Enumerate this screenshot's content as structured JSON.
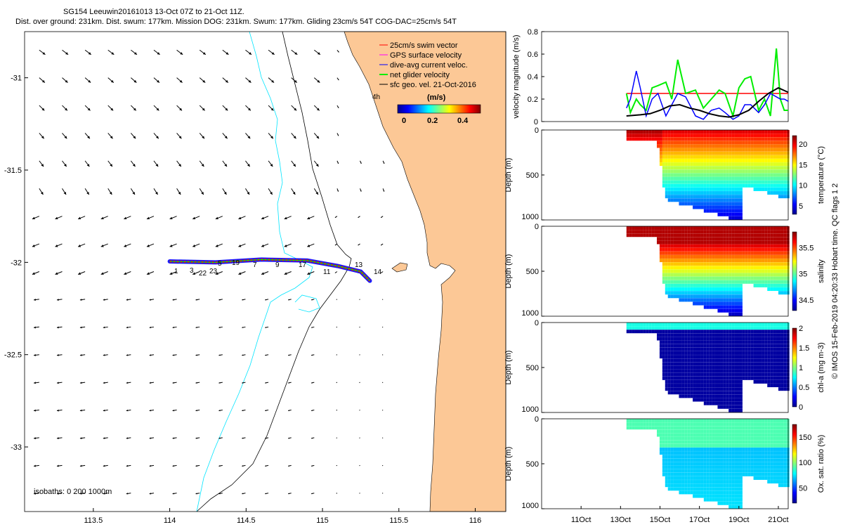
{
  "header": {
    "title_line1": "SG154 Leeuwin20161013 13-Oct 07Z to 21-Oct 11Z.",
    "title_line2": "Dist. over ground: 231km. Dist. swum: 177km. Mission DOG: 231km. Swum: 177km. Gliding 23cm/s 54T COG-DAC=25cm/s 54T"
  },
  "side_note": "© IMOS 15-Feb-2019 04:20:33 Hobart time. QC flags 1  2",
  "colors": {
    "land": "#fcc896",
    "isobath_200": "#00e5ff",
    "isobath_1000": "#000000",
    "swim": "#ff0000",
    "gps": "#ff00ff",
    "dac": "#0000ff",
    "net": "#00ee00",
    "sfc": "#000000"
  },
  "chart_data": [
    {
      "id": "map",
      "type": "map-quiver",
      "xlim": [
        113.05,
        116.2
      ],
      "ylim": [
        -33.35,
        -30.75
      ],
      "xticks": [
        113.5,
        114,
        114.5,
        115,
        115.5,
        116
      ],
      "xtick_labels": [
        "113.5",
        "114",
        "114.5",
        "115",
        "115.5",
        "116"
      ],
      "yticks": [
        -31,
        -31.5,
        -32,
        -32.5,
        -33
      ],
      "ytick_labels": [
        "-31",
        "-31.5",
        "-32",
        "-32.5",
        "-33"
      ],
      "legend": {
        "entries": [
          {
            "label": "25cm/s swim vector",
            "color": "#ff0000"
          },
          {
            "label": "GPS surface velocity",
            "color": "#ff00ff"
          },
          {
            "label": "dive-avg current veloc.",
            "color": "#0000ff"
          },
          {
            "label": "net glider velocity",
            "color": "#00ee00"
          },
          {
            "label": "sfc geo. vel. 21-Oct-2016",
            "color": "#000000"
          }
        ],
        "position": "top-right"
      },
      "colorbar": {
        "title": "(m/s)",
        "ticks": [
          "0",
          "0.2",
          "0.4"
        ],
        "range": [
          0,
          0.5
        ]
      },
      "isobath_label": "isobaths: 0   200   1000m",
      "time_label": "4h",
      "track_day_labels": [
        "1",
        "3",
        "5",
        "7",
        "9",
        "11",
        "13",
        "14",
        "17",
        "19",
        "22",
        "23"
      ],
      "track": {
        "lon": [
          114.0,
          114.3,
          114.6,
          114.9,
          115.1,
          115.25,
          115.31
        ],
        "lat": [
          -31.995,
          -32.0,
          -31.985,
          -31.99,
          -32.02,
          -32.05,
          -32.1
        ]
      },
      "vector_grid": {
        "lon": [
          113.1,
          113.25,
          113.4,
          113.55,
          113.7,
          113.85,
          114.0,
          114.15,
          114.3,
          114.45,
          114.6,
          114.75,
          114.9,
          115.05,
          115.2,
          115.35
        ],
        "lat": [
          -30.85,
          -31.0,
          -31.15,
          -31.3,
          -31.45,
          -31.6,
          -31.75,
          -31.9,
          -32.05,
          -32.2,
          -32.35,
          -32.5,
          -32.65,
          -32.8,
          -32.95,
          -33.1,
          -33.25
        ]
      }
    },
    {
      "id": "velocity",
      "type": "line",
      "ylabel": "velocity magnitude (m/s)",
      "ylim": [
        0,
        0.8
      ],
      "yticks": [
        "0",
        "0.2",
        "0.4",
        "0.6",
        "0.8"
      ],
      "xlim": [
        9,
        21.5
      ],
      "series": [
        {
          "name": "swim",
          "color": "#ff0000",
          "x": [
            13.3,
            21.5
          ],
          "y": [
            0.25,
            0.25
          ]
        },
        {
          "name": "net",
          "color": "#00ee00",
          "x": [
            13.3,
            13.5,
            13.8,
            14.0,
            14.3,
            14.6,
            14.9,
            15.3,
            15.6,
            15.9,
            16.3,
            16.8,
            17.2,
            17.6,
            18.0,
            18.3,
            18.7,
            19.0,
            19.3,
            19.6,
            20.0,
            20.3,
            20.6,
            20.9,
            21.1,
            21.3,
            21.5
          ],
          "y": [
            0.25,
            0.08,
            0.2,
            0.15,
            0.1,
            0.3,
            0.32,
            0.35,
            0.2,
            0.55,
            0.25,
            0.28,
            0.12,
            0.2,
            0.28,
            0.25,
            0.05,
            0.3,
            0.38,
            0.4,
            0.1,
            0.2,
            0.05,
            0.65,
            0.2,
            0.1,
            0.1
          ]
        },
        {
          "name": "dac",
          "color": "#0000ff",
          "x": [
            13.3,
            13.5,
            13.8,
            14.0,
            14.3,
            14.6,
            14.9,
            15.3,
            15.6,
            15.9,
            16.3,
            16.8,
            17.2,
            17.6,
            18.0,
            18.3,
            18.7,
            19.0,
            19.3,
            19.6,
            20.0,
            20.3,
            20.6,
            20.9,
            21.1,
            21.3,
            21.5
          ],
          "y": [
            0.12,
            0.2,
            0.45,
            0.3,
            0.05,
            0.2,
            0.25,
            0.05,
            0.15,
            0.25,
            0.22,
            0.05,
            0.02,
            0.1,
            0.12,
            0.08,
            0.02,
            0.05,
            0.15,
            0.15,
            0.08,
            0.15,
            0.25,
            0.22,
            0.2,
            0.2,
            0.18
          ]
        },
        {
          "name": "sfc",
          "color": "#000000",
          "x": [
            13.3,
            14.0,
            14.5,
            15.0,
            15.5,
            16.0,
            16.5,
            17.0,
            17.5,
            18.0,
            18.5,
            19.0,
            19.5,
            20.0,
            20.5,
            21.0,
            21.5
          ],
          "y": [
            0.05,
            0.06,
            0.07,
            0.1,
            0.14,
            0.15,
            0.12,
            0.1,
            0.07,
            0.05,
            0.04,
            0.06,
            0.1,
            0.18,
            0.25,
            0.3,
            0.26
          ]
        }
      ]
    },
    {
      "id": "temperature",
      "type": "heatmap",
      "ylabel": "Depth (m)",
      "cblabel": "temperature (°C)",
      "yticks": [
        "0",
        "500",
        "1000"
      ],
      "cbticks": [
        "5",
        "10",
        "15",
        "20"
      ],
      "crange": [
        3,
        22
      ]
    },
    {
      "id": "salinity",
      "type": "heatmap",
      "ylabel": "Depth (m)",
      "cblabel": "salinity",
      "yticks": [
        "0",
        "500",
        "1000"
      ],
      "cbticks": [
        "34.5",
        "35",
        "35.5"
      ],
      "crange": [
        34.3,
        35.8
      ]
    },
    {
      "id": "chla",
      "type": "heatmap",
      "ylabel": "Depth (m)",
      "cblabel": "chl-a (mg m-3)",
      "yticks": [
        "0",
        "500",
        "1000"
      ],
      "cbticks": [
        "0",
        "0.5",
        "1",
        "1.5",
        "2"
      ],
      "crange": [
        0,
        2
      ]
    },
    {
      "id": "oxygen",
      "type": "heatmap",
      "ylabel": "Depth (m)",
      "cblabel": "Ox. sat. ratio (%)",
      "yticks": [
        "0",
        "500",
        "1000"
      ],
      "cbticks": [
        "50",
        "100",
        "150"
      ],
      "crange": [
        20,
        175
      ]
    },
    {
      "id": "time_axis",
      "type": "axis",
      "xlim": [
        9,
        21.5
      ],
      "ticks": [
        11,
        13,
        15,
        17,
        19,
        21
      ],
      "tick_labels": [
        "11Oct",
        "13Oct",
        "15Oct",
        "17Oct",
        "19Oct",
        "21Oct"
      ]
    }
  ]
}
